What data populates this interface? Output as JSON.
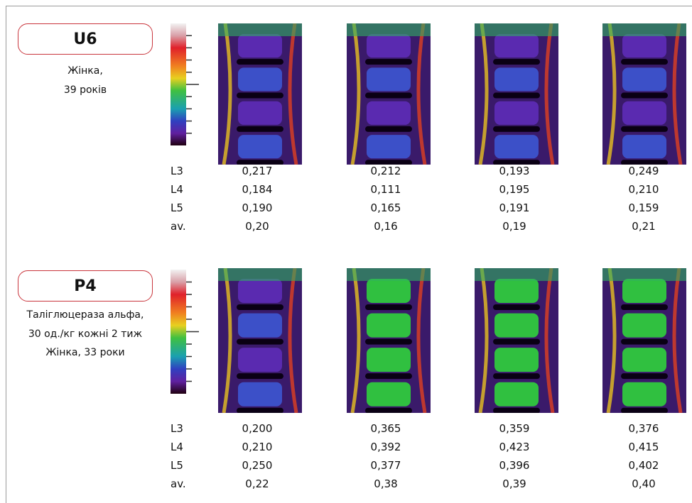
{
  "panels": [
    {
      "label": "U6",
      "description": [
        "Жінка,",
        "39 років"
      ],
      "table": {
        "rows": [
          [
            "L3",
            "0,217",
            "0,212",
            "0,193",
            "0,249"
          ],
          [
            "L4",
            "0,184",
            "0,111",
            "0,195",
            "0,210"
          ],
          [
            "L5",
            "0,190",
            "0,165",
            "0,191",
            "0,159"
          ],
          [
            "av.",
            "0,20",
            "0,16",
            "0,19",
            "0,21"
          ]
        ]
      }
    },
    {
      "label": "P4",
      "description": [
        "Таліглюцераза альфа,",
        "30 од./кг кожні 2 тиж",
        "Жінка, 33 роки"
      ],
      "table": {
        "rows": [
          [
            "L3",
            "0,200",
            "0,365",
            "0,359",
            "0,376"
          ],
          [
            "L4",
            "0,210",
            "0,392",
            "0,423",
            "0,415"
          ],
          [
            "L5",
            "0,250",
            "0,377",
            "0,396",
            "0,402"
          ],
          [
            "av.",
            "0,22",
            "0,38",
            "0,39",
            "0,40"
          ]
        ]
      }
    }
  ]
}
